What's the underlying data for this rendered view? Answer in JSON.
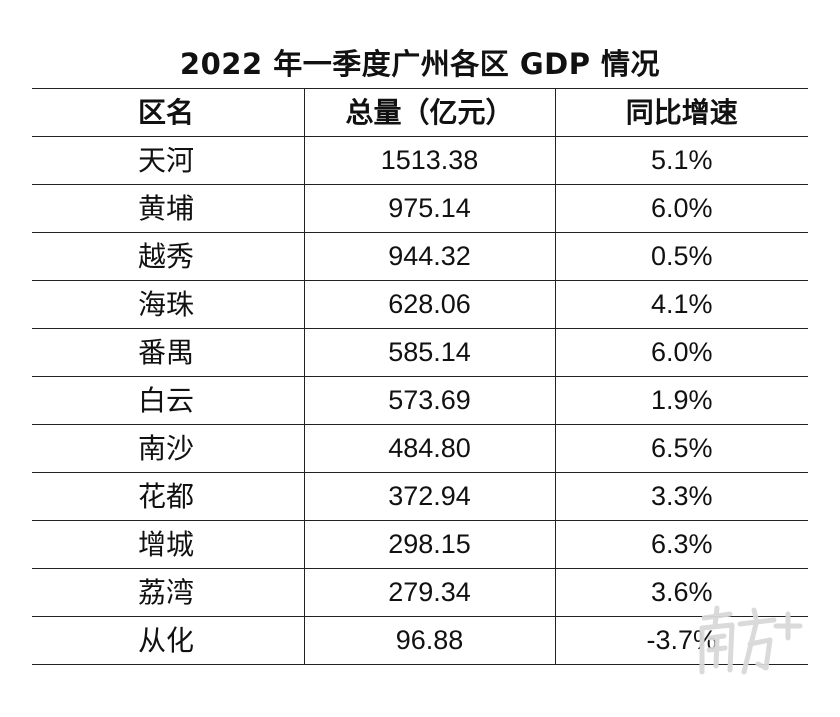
{
  "title": "2022 年一季度广州各区 GDP 情况",
  "table": {
    "headers": [
      "区名",
      "总量（亿元）",
      "同比增速"
    ],
    "rows": [
      {
        "district": "天河",
        "total": "1513.38",
        "growth": "5.1%"
      },
      {
        "district": "黄埔",
        "total": "975.14",
        "growth": "6.0%"
      },
      {
        "district": "越秀",
        "total": "944.32",
        "growth": "0.5%"
      },
      {
        "district": "海珠",
        "total": "628.06",
        "growth": "4.1%"
      },
      {
        "district": "番禺",
        "total": "585.14",
        "growth": "6.0%"
      },
      {
        "district": "白云",
        "total": "573.69",
        "growth": "1.9%"
      },
      {
        "district": "南沙",
        "total": "484.80",
        "growth": "6.5%"
      },
      {
        "district": "花都",
        "total": "372.94",
        "growth": "3.3%"
      },
      {
        "district": "增城",
        "total": "298.15",
        "growth": "6.3%"
      },
      {
        "district": "荔湾",
        "total": "279.34",
        "growth": "3.6%"
      },
      {
        "district": "从化",
        "total": "96.88",
        "growth": "-3.7%"
      }
    ]
  },
  "watermark": {
    "text": "南方+",
    "color": "#d9d9d9"
  }
}
